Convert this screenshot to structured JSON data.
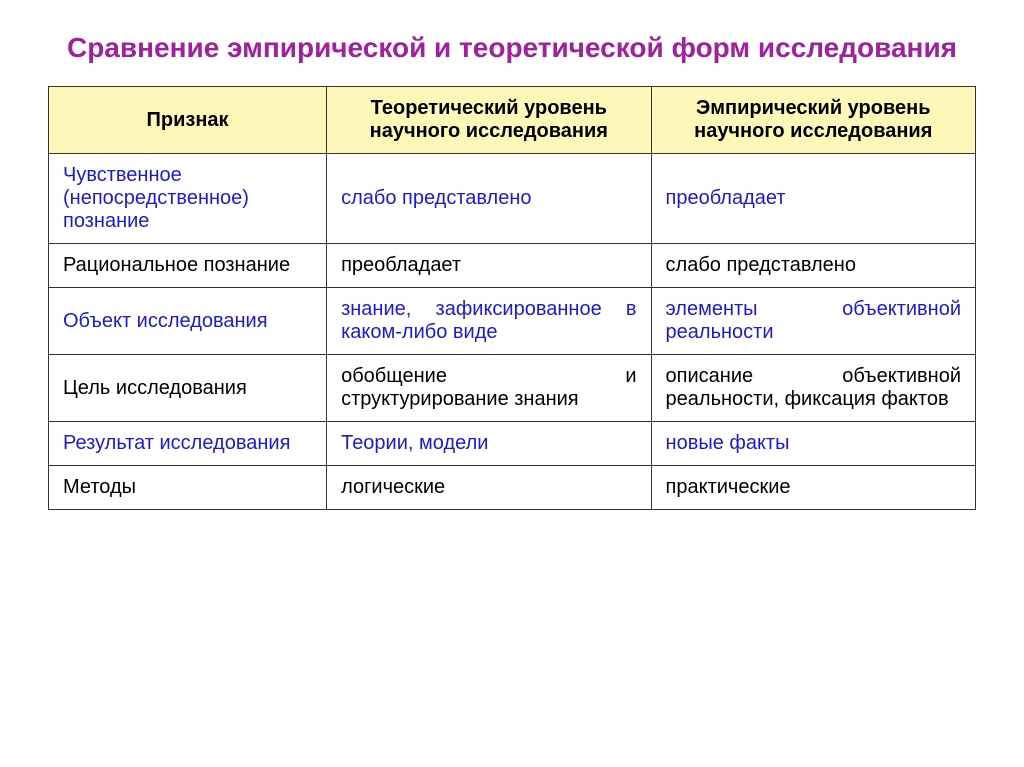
{
  "title": "Сравнение эмпирической и теоретической форм исследования",
  "colors": {
    "title_color": "#a020a0",
    "header_bg": "#fdf8b8",
    "header_text": "#000000",
    "blue_text": "#1a1ad6",
    "body_text": "#000000",
    "border": "#333333"
  },
  "fonts": {
    "title_size": "28px",
    "header_size": "20px",
    "body_size": "20px"
  },
  "col_widths": [
    "30%",
    "35%",
    "35%"
  ],
  "headers": [
    "Признак",
    "Теоретический уровень научного исследования",
    "Эмпирический уровень научного исследования"
  ],
  "rows": [
    {
      "c0": "Чувственное (непосредственное) познание",
      "c1": "слабо представлено",
      "c2": "преобладает",
      "blue": true,
      "justify": false
    },
    {
      "c0": "Рациональное  познание",
      "c1": "преобладает",
      "c2": "слабо представлено",
      "blue": false,
      "justify": false
    },
    {
      "c0": "Объект исследования",
      "c1": "знание, зафиксированное в каком-либо виде",
      "c2": "элементы объективной реальности",
      "blue": true,
      "justify": true
    },
    {
      "c0": "Цель исследования",
      "c1": "обобщение и структурирование знания",
      "c2": "описание объективной реальности, фиксация фактов",
      "blue": false,
      "justify": true
    },
    {
      "c0": "Результат исследования",
      "c1": "Теории, модели",
      "c2": "новые факты",
      "blue": true,
      "justify": false
    },
    {
      "c0": "Методы",
      "c1": "логические",
      "c2": "практические",
      "blue": false,
      "justify": false
    }
  ]
}
